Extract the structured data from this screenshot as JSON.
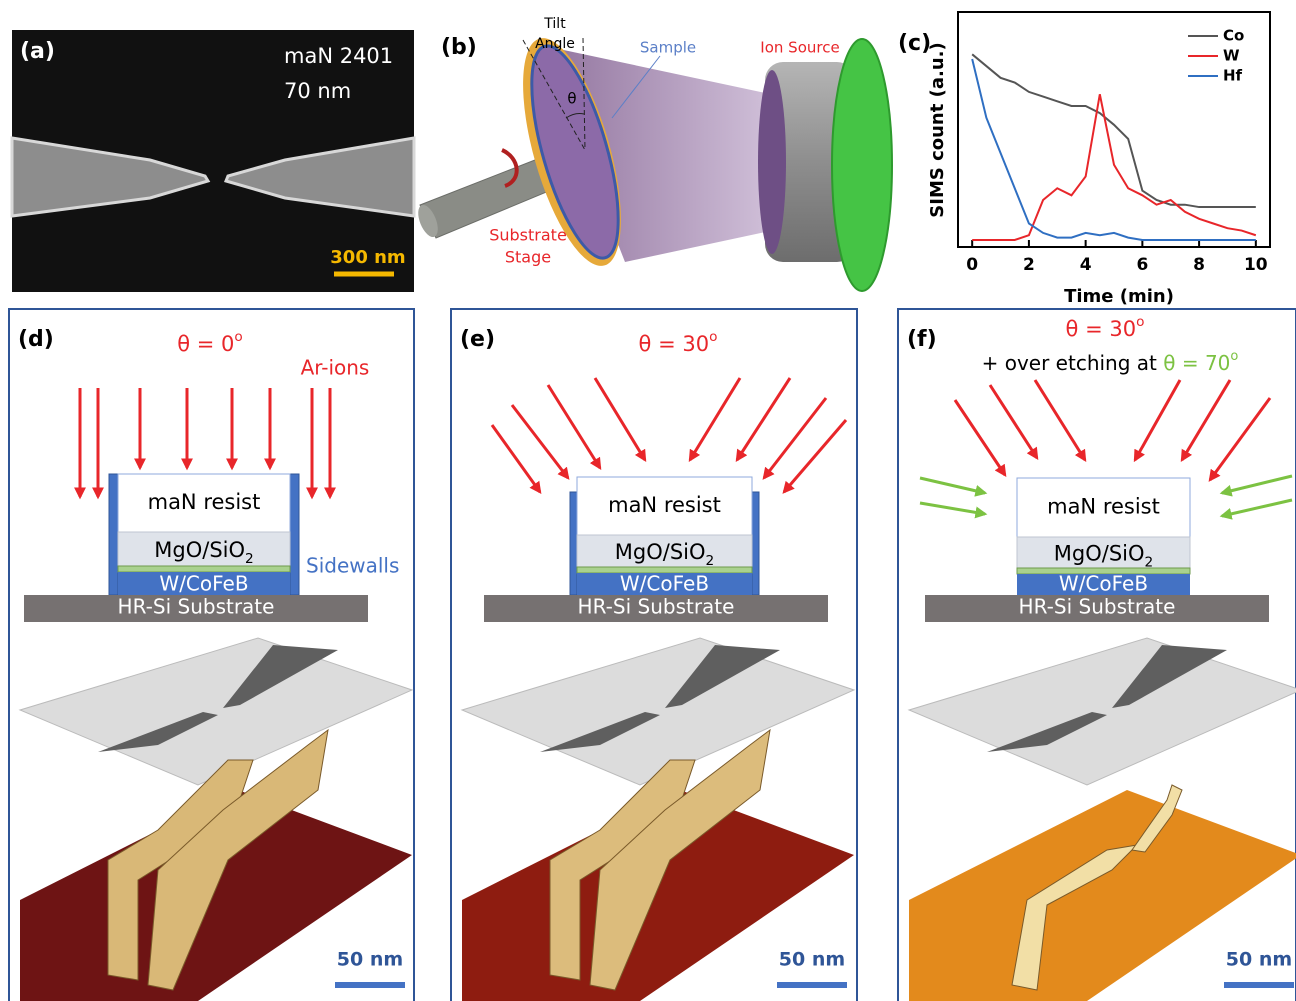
{
  "panels": {
    "a": {
      "label": "(a)",
      "material": "maN 2401",
      "thickness": "70 nm",
      "scale_bar": "300 nm"
    },
    "b": {
      "label": "(b)",
      "tilt_angle": [
        "Tilt",
        "Angle"
      ],
      "theta": "θ",
      "sample": "Sample",
      "ion_source": "Ion Source",
      "substrate_stage": [
        "Substrate",
        "Stage"
      ]
    },
    "d": {
      "label": "(d)",
      "angle": {
        "text": "θ = 0",
        "sup": "o"
      },
      "ions": "Ar-ions",
      "sidewalls": "Sidewalls",
      "layers": {
        "resist": "maN resist",
        "oxide": {
          "text": "MgO/SiO",
          "sub": "2"
        },
        "metal": "W/CoFeB",
        "substrate": "HR-Si Substrate"
      },
      "scale_bar": "50 nm"
    },
    "e": {
      "label": "(e)",
      "angle": {
        "text": "θ = 30",
        "sup": "o"
      },
      "layers": {
        "resist": "maN resist",
        "oxide": {
          "text": "MgO/SiO",
          "sub": "2"
        },
        "metal": "W/CoFeB",
        "substrate": "HR-Si Substrate"
      },
      "scale_bar": "50 nm"
    },
    "f": {
      "label": "(f)",
      "angle": {
        "text": "θ = 30",
        "sup": "o"
      },
      "over_etch": {
        "text": "+ over etching at ",
        "angle": "θ = 70",
        "sup": "o"
      },
      "layers": {
        "resist": "maN resist",
        "oxide": {
          "text": "MgO/SiO",
          "sub": "2"
        },
        "metal": "W/CoFeB",
        "substrate": "HR-Si Substrate"
      },
      "scale_bar": "50 nm"
    }
  },
  "chart_data": {
    "type": "line",
    "panel_label": "(c)",
    "xlabel": "Time (min)",
    "ylabel": "SIMS count (a.u.)",
    "x": [
      0,
      0.5,
      1,
      1.5,
      2,
      2.5,
      3,
      3.5,
      4,
      4.5,
      5,
      5.5,
      6,
      6.5,
      7,
      7.5,
      8,
      8.5,
      9,
      9.5,
      10
    ],
    "series": [
      {
        "name": "Co",
        "color": "#555555",
        "values": [
          0.82,
          0.77,
          0.72,
          0.7,
          0.66,
          0.64,
          0.62,
          0.6,
          0.6,
          0.57,
          0.52,
          0.46,
          0.24,
          0.2,
          0.18,
          0.18,
          0.17,
          0.17,
          0.17,
          0.17,
          0.17
        ]
      },
      {
        "name": "W",
        "color": "#e8262a",
        "values": [
          0.03,
          0.03,
          0.03,
          0.03,
          0.05,
          0.2,
          0.25,
          0.22,
          0.3,
          0.65,
          0.35,
          0.25,
          0.22,
          0.18,
          0.2,
          0.15,
          0.12,
          0.1,
          0.08,
          0.07,
          0.05
        ]
      },
      {
        "name": "Hf",
        "color": "#2f6fc2",
        "values": [
          0.8,
          0.55,
          0.4,
          0.25,
          0.1,
          0.06,
          0.04,
          0.04,
          0.06,
          0.05,
          0.06,
          0.04,
          0.03,
          0.03,
          0.03,
          0.03,
          0.03,
          0.03,
          0.03,
          0.03,
          0.03
        ]
      }
    ],
    "xlim": [
      -0.5,
      10.5
    ],
    "ylim": [
      0,
      1
    ],
    "xticks": [
      0,
      2,
      4,
      6,
      8,
      10
    ],
    "legend": "upper right"
  }
}
